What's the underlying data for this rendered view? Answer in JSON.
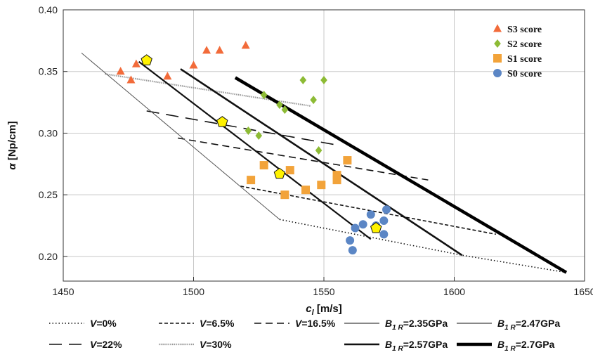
{
  "chart_data": {
    "type": "scatter",
    "xlabel": {
      "symbol": "c",
      "sub": "l",
      "unit": " [m/s]"
    },
    "ylabel": {
      "symbol": "α",
      "unit": " [Np/cm]"
    },
    "xlim": [
      1450,
      1650
    ],
    "ylim": [
      0.18,
      0.4
    ],
    "xticks": [
      1450,
      1500,
      1550,
      1600,
      1650
    ],
    "yticks": [
      0.2,
      0.25,
      0.3,
      0.35,
      0.4
    ],
    "xtick_labels": [
      "1450",
      "1500",
      "1550",
      "1600",
      "1650"
    ],
    "ytick_labels": [
      "0.20",
      "0.25",
      "0.30",
      "0.35",
      "0.40"
    ],
    "grid": true,
    "legend_position": "top-right",
    "scatter_series": [
      {
        "name": "S3 score",
        "marker": "triangle",
        "color": "#F26B3A",
        "points": [
          [
            1472,
            0.35
          ],
          [
            1476,
            0.343
          ],
          [
            1478,
            0.356
          ],
          [
            1490,
            0.346
          ],
          [
            1500,
            0.355
          ],
          [
            1505,
            0.367
          ],
          [
            1510,
            0.367
          ],
          [
            1520,
            0.371
          ]
        ]
      },
      {
        "name": "S2 score",
        "marker": "diamond",
        "color": "#8DBB35",
        "points": [
          [
            1521,
            0.302
          ],
          [
            1525,
            0.298
          ],
          [
            1527,
            0.331
          ],
          [
            1533,
            0.323
          ],
          [
            1535,
            0.319
          ],
          [
            1542,
            0.343
          ],
          [
            1546,
            0.327
          ],
          [
            1548,
            0.286
          ],
          [
            1550,
            0.343
          ]
        ]
      },
      {
        "name": "S1 score",
        "marker": "square",
        "color": "#F2A33A",
        "points": [
          [
            1522,
            0.262
          ],
          [
            1527,
            0.274
          ],
          [
            1535,
            0.25
          ],
          [
            1537,
            0.27
          ],
          [
            1543,
            0.254
          ],
          [
            1549,
            0.258
          ],
          [
            1555,
            0.266
          ],
          [
            1555,
            0.262
          ],
          [
            1559,
            0.278
          ]
        ]
      },
      {
        "name": "S0 score",
        "marker": "circle",
        "color": "#5B86C5",
        "points": [
          [
            1560,
            0.213
          ],
          [
            1561,
            0.205
          ],
          [
            1562,
            0.223
          ],
          [
            1565,
            0.226
          ],
          [
            1568,
            0.234
          ],
          [
            1570,
            0.225
          ],
          [
            1573,
            0.229
          ],
          [
            1573,
            0.218
          ],
          [
            1574,
            0.238
          ]
        ]
      }
    ],
    "highlight_points": {
      "color": "#FFF200",
      "points": [
        [
          1482,
          0.359
        ],
        [
          1511,
          0.309
        ],
        [
          1533,
          0.267
        ],
        [
          1570,
          0.223
        ]
      ]
    },
    "line_series": [
      {
        "name": "V=0%",
        "style": "dotted",
        "width": 1.6,
        "color": "#111111",
        "points": [
          [
            1533,
            0.23
          ],
          [
            1603,
            0.201
          ],
          [
            1643,
            0.187
          ]
        ]
      },
      {
        "name": "V=6.5%",
        "style": "dashed-short",
        "width": 1.6,
        "color": "#111111",
        "points": [
          [
            1518,
            0.257
          ],
          [
            1616,
            0.218
          ]
        ]
      },
      {
        "name": "V=16.5%",
        "style": "dashed-medium",
        "width": 1.6,
        "color": "#111111",
        "points": [
          [
            1494,
            0.296
          ],
          [
            1590,
            0.262
          ]
        ]
      },
      {
        "name": "V=22%",
        "style": "dashed-long",
        "width": 1.6,
        "color": "#111111",
        "points": [
          [
            1482,
            0.318
          ],
          [
            1556,
            0.29
          ]
        ]
      },
      {
        "name": "V=30%",
        "style": "dotted-dense",
        "width": 2.2,
        "color": "#999999",
        "points": [
          [
            1466,
            0.348
          ],
          [
            1545,
            0.322
          ]
        ]
      },
      {
        "name": "B1R=2.35GPa",
        "style": "solid",
        "width": 1,
        "color": "#555555",
        "points": [
          [
            1457,
            0.365
          ],
          [
            1533,
            0.23
          ]
        ]
      },
      {
        "name": "B1R=2.47GPa",
        "style": "solid",
        "width": 2.2,
        "color": "#111111",
        "points": [
          [
            1479,
            0.358
          ],
          [
            1568,
            0.214
          ]
        ]
      },
      {
        "name": "B1R=2.57GPa",
        "style": "solid",
        "width": 2.6,
        "color": "#111111",
        "points": [
          [
            1495,
            0.352
          ],
          [
            1603,
            0.201
          ]
        ]
      },
      {
        "name": "B1R=2.7GPa",
        "style": "solid",
        "width": 4.5,
        "color": "#000000",
        "points": [
          [
            1516,
            0.345
          ],
          [
            1643,
            0.187
          ]
        ]
      }
    ],
    "bottom_legend": [
      {
        "symbol": "V",
        "op": "=",
        "value": "0%",
        "style": "dotted"
      },
      {
        "symbol": "V",
        "op": "=",
        "value": "6.5%",
        "style": "dashed-short"
      },
      {
        "symbol": "V",
        "op": "=",
        "value": "16.5%",
        "style": "dashed-medium"
      },
      {
        "symbol": "B",
        "sub": "1 R",
        "op": "=",
        "value": "2.35GPa",
        "style": "solid-thin-gray"
      },
      {
        "symbol": "B",
        "sub": "1 R",
        "op": "=",
        "value": "2.47GPa",
        "style": "solid-gray"
      },
      {
        "symbol": "V",
        "op": "=",
        "value": "22%",
        "style": "dashed-long"
      },
      {
        "symbol": "V",
        "op": "=",
        "value": "30%",
        "style": "dotted-dense"
      },
      {
        "symbol": "B",
        "sub": "1 R",
        "op": "=",
        "value": "2.57GPa",
        "style": "solid"
      },
      {
        "symbol": "B",
        "sub": "1 R",
        "op": "=",
        "value": "2.7GPa",
        "style": "solid-thick"
      }
    ]
  }
}
